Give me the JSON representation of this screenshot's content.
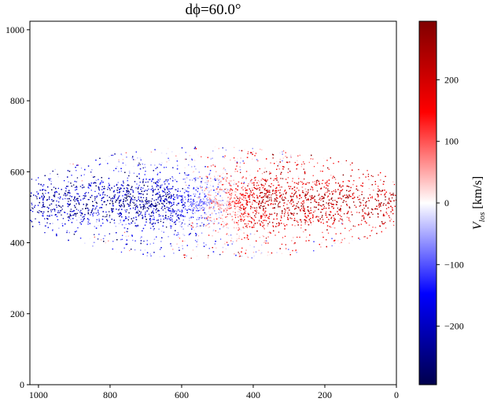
{
  "chart_data": {
    "type": "scatter",
    "title": "dϕ=60.0°",
    "xlabel": "",
    "ylabel": "",
    "xlim": [
      1024,
      0
    ],
    "ylim": [
      0,
      1024
    ],
    "x_inverted": true,
    "x_ticks": [
      1000,
      800,
      600,
      400,
      200,
      0
    ],
    "y_ticks": [
      0,
      200,
      400,
      600,
      800,
      1000
    ],
    "colormap": "seismic",
    "colorbar": {
      "label_main": "V",
      "label_sub": "los",
      "label_unit": " [km/s]",
      "range": [
        -295,
        295
      ],
      "ticks": [
        -200,
        -100,
        0,
        100,
        200
      ],
      "tick_labels": [
        "−200",
        "−100",
        "0",
        "100",
        "200"
      ]
    },
    "point_cloud": {
      "x_center": 512,
      "y_center": 515,
      "x_extent": [
        0,
        1024
      ],
      "y_extent": [
        355,
        672
      ],
      "note_side_negative": "x > 512 approaching (blue, to about −250 km/s)",
      "note_side_positive": "x < 512 receding (red, to about +250 km/s)"
    },
    "colors": {
      "cmap_min": "#00004c",
      "cmap_blue": "#0000ff",
      "cmap_mid": "#ffffff",
      "cmap_red": "#ff0000",
      "cmap_max": "#800000"
    }
  }
}
